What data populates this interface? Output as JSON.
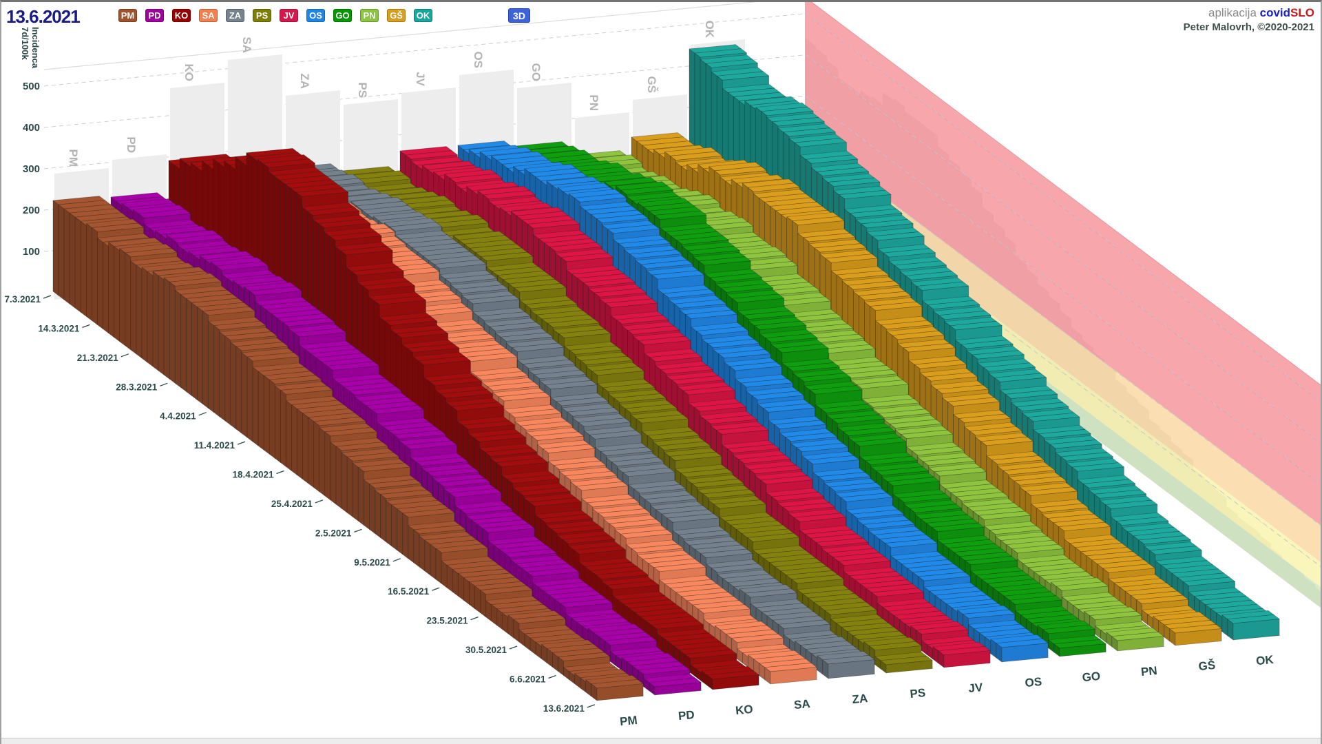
{
  "header": {
    "date_label": "13.6.2021",
    "mode_button_label": "3D",
    "app_prefix": "aplikacija ",
    "app_name_part1": "covid",
    "app_name_part2": "SLO",
    "app_name_color1": "#1822CC",
    "app_name_color2": "#CC1818",
    "credit_line": "Peter Malovrh, ©2020-2021"
  },
  "axis": {
    "y_title_line1": "7d/100k",
    "y_title_line2": "Incidenca",
    "y_ticks": [
      500,
      400,
      300,
      200,
      100
    ],
    "week_labels": [
      "7.3.2021",
      "14.3.2021",
      "21.3.2021",
      "28.3.2021",
      "4.4.2021",
      "11.4.2021",
      "18.4.2021",
      "25.4.2021",
      "2.5.2021",
      "9.5.2021",
      "16.5.2021",
      "23.5.2021",
      "30.5.2021",
      "6.6.2021",
      "13.6.2021"
    ]
  },
  "chart_data": {
    "type": "3d-ribbon-bar",
    "title": "",
    "ylabel": "7d/100k Incidenca",
    "ylim": [
      0,
      500
    ],
    "grid": true,
    "legend_position": "top",
    "x": [
      "7.3.2021",
      "14.3.2021",
      "21.3.2021",
      "28.3.2021",
      "4.4.2021",
      "11.4.2021",
      "18.4.2021",
      "25.4.2021",
      "2.5.2021",
      "9.5.2021",
      "16.5.2021",
      "23.5.2021",
      "30.5.2021",
      "6.6.2021",
      "13.6.2021"
    ],
    "series": [
      {
        "name": "PM",
        "color": "#A5552F",
        "legend_color": "#A0522D",
        "shadow_max": 285,
        "weekly": [
          225,
          215,
          222,
          230,
          215,
          185,
          168,
          148,
          115,
          88,
          62,
          46,
          36,
          27,
          22
        ]
      },
      {
        "name": "PD",
        "color": "#A800A8",
        "legend_color": "#A000A0",
        "shadow_max": 305,
        "weekly": [
          218,
          215,
          228,
          238,
          228,
          202,
          182,
          158,
          126,
          96,
          70,
          50,
          38,
          30,
          24
        ]
      },
      {
        "name": "KO",
        "color": "#A30D0D",
        "legend_color": "#990000",
        "shadow_max": 465,
        "weekly": [
          290,
          360,
          450,
          445,
          400,
          330,
          268,
          212,
          160,
          120,
          86,
          60,
          44,
          32,
          25
        ]
      },
      {
        "name": "SA",
        "color": "#F8875E",
        "legend_color": "#F5814E",
        "shadow_max": 520,
        "weekly": [
          240,
          258,
          300,
          312,
          292,
          258,
          226,
          190,
          150,
          114,
          84,
          60,
          44,
          33,
          26
        ]
      },
      {
        "name": "ZA",
        "color": "#75828E",
        "legend_color": "#76828E",
        "shadow_max": 420,
        "weekly": [
          248,
          262,
          288,
          292,
          272,
          242,
          210,
          176,
          140,
          106,
          78,
          56,
          42,
          31,
          25
        ]
      },
      {
        "name": "PS",
        "color": "#84810E",
        "legend_color": "#7E7E00",
        "shadow_max": 385,
        "weekly": [
          225,
          238,
          262,
          272,
          256,
          230,
          200,
          170,
          134,
          100,
          74,
          54,
          40,
          30,
          23
        ]
      },
      {
        "name": "JV",
        "color": "#DC1545",
        "legend_color": "#D6164C",
        "shadow_max": 400,
        "weekly": [
          255,
          272,
          302,
          312,
          292,
          262,
          230,
          194,
          155,
          116,
          85,
          60,
          44,
          33,
          26
        ]
      },
      {
        "name": "OS",
        "color": "#2189E8",
        "legend_color": "#1E86E5",
        "shadow_max": 430,
        "weekly": [
          265,
          292,
          332,
          342,
          322,
          286,
          250,
          210,
          165,
          124,
          90,
          64,
          47,
          35,
          27
        ]
      },
      {
        "name": "GO",
        "color": "#0E9E0E",
        "legend_color": "#009900",
        "shadow_max": 385,
        "weekly": [
          245,
          272,
          312,
          332,
          312,
          282,
          246,
          206,
          160,
          120,
          87,
          62,
          45,
          33,
          26
        ]
      },
      {
        "name": "PN",
        "color": "#8FC43F",
        "legend_color": "#8CC63F",
        "shadow_max": 300,
        "weekly": [
          208,
          222,
          252,
          266,
          256,
          230,
          200,
          168,
          134,
          100,
          74,
          53,
          39,
          29,
          23
        ]
      },
      {
        "name": "GŠ",
        "color": "#DB9E1C",
        "legend_color": "#D8A01D",
        "shadow_max": 330,
        "weekly": [
          235,
          262,
          302,
          332,
          322,
          292,
          256,
          216,
          170,
          128,
          92,
          65,
          47,
          34,
          26
        ]
      },
      {
        "name": "OK",
        "color": "#1EA99F",
        "legend_color": "#18A79F",
        "shadow_max": 450,
        "weekly": [
          445,
          405,
          420,
          385,
          340,
          300,
          260,
          222,
          182,
          146,
          108,
          76,
          54,
          39,
          28
        ]
      }
    ],
    "zones": [
      {
        "label": "green",
        "from": 0,
        "to": 50,
        "color": "rgba(190,224,170,0.60)"
      },
      {
        "label": "yellow",
        "from": 50,
        "to": 110,
        "color": "rgba(247,240,150,0.65)"
      },
      {
        "label": "orange",
        "from": 110,
        "to": 200,
        "color": "rgba(249,206,138,0.65)"
      },
      {
        "label": "red",
        "from": 200,
        "to": 540,
        "color": "rgba(243,128,136,0.70)"
      }
    ]
  }
}
